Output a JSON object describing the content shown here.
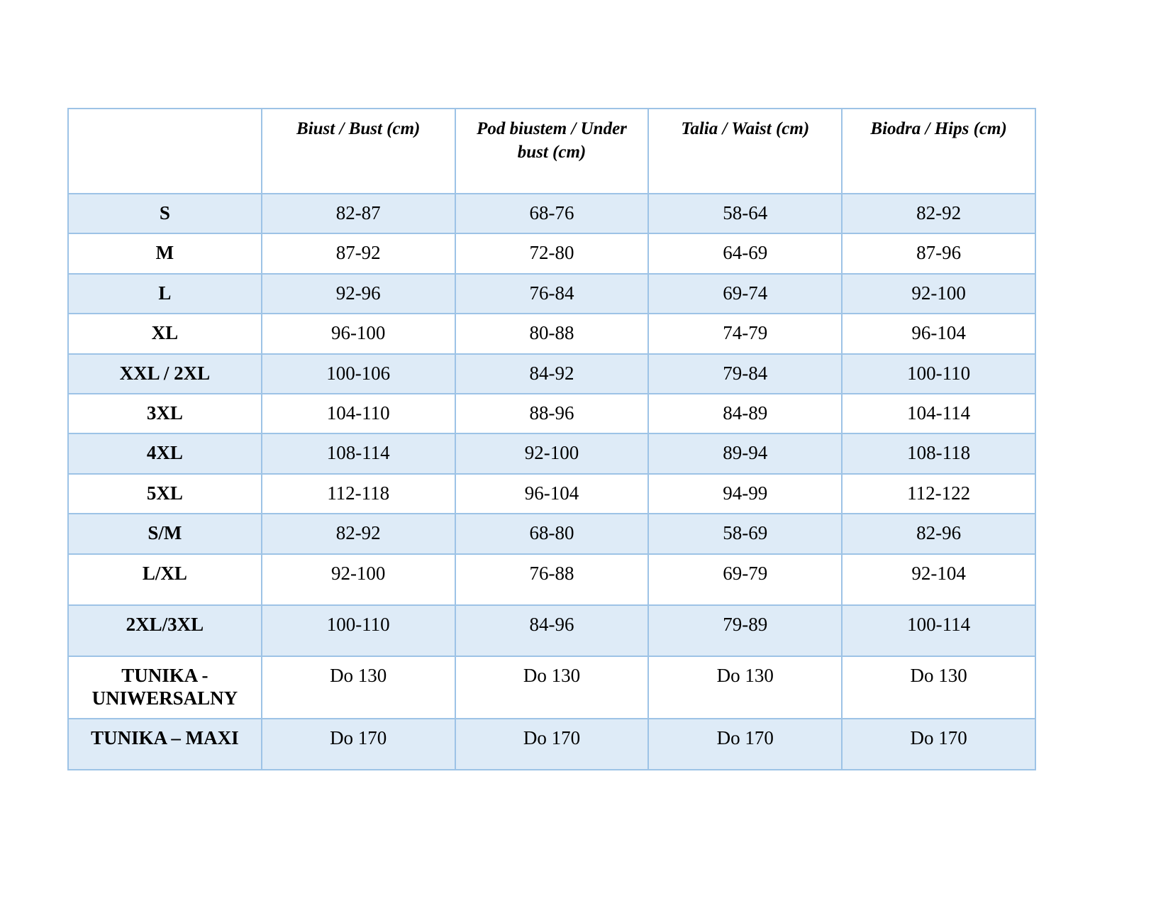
{
  "table": {
    "border_color": "#9DC3E6",
    "stripe_color": "#DEEBF7",
    "headers": [
      "",
      "Biust / Bust (cm)",
      "Pod biustem / Under bust (cm)",
      "Talia / Waist (cm)",
      "Biodra / Hips (cm)"
    ],
    "rows": [
      {
        "label": "S",
        "values": [
          "82-87",
          "68-76",
          "58-64",
          "82-92"
        ],
        "shaded": true
      },
      {
        "label": "M",
        "values": [
          "87-92",
          "72-80",
          "64-69",
          "87-96"
        ],
        "shaded": false
      },
      {
        "label": "L",
        "values": [
          "92-96",
          "76-84",
          "69-74",
          "92-100"
        ],
        "shaded": true
      },
      {
        "label": "XL",
        "values": [
          "96-100",
          "80-88",
          "74-79",
          "96-104"
        ],
        "shaded": false
      },
      {
        "label": "XXL / 2XL",
        "values": [
          "100-106",
          "84-92",
          "79-84",
          "100-110"
        ],
        "shaded": true
      },
      {
        "label": "3XL",
        "values": [
          "104-110",
          "88-96",
          "84-89",
          "104-114"
        ],
        "shaded": false
      },
      {
        "label": "4XL",
        "values": [
          "108-114",
          "92-100",
          "89-94",
          "108-118"
        ],
        "shaded": true
      },
      {
        "label": "5XL",
        "values": [
          "112-118",
          "96-104",
          "94-99",
          "112-122"
        ],
        "shaded": false
      },
      {
        "label": "S/M",
        "values": [
          "82-92",
          "68-80",
          "58-69",
          "82-96"
        ],
        "shaded": true
      },
      {
        "label": "L/XL",
        "values": [
          "92-100",
          "76-88",
          "69-79",
          "92-104"
        ],
        "shaded": false
      },
      {
        "label": "2XL/3XL",
        "values": [
          "100-110",
          "84-96",
          "79-89",
          "100-114"
        ],
        "shaded": true
      },
      {
        "label": "TUNIKA - UNIWERSALNY",
        "values": [
          "Do 130",
          "Do 130",
          "Do 130",
          "Do 130"
        ],
        "shaded": false
      },
      {
        "label": "TUNIKA – MAXI",
        "values": [
          "Do 170",
          "Do 170",
          "Do 170",
          "Do 170"
        ],
        "shaded": true
      }
    ]
  }
}
